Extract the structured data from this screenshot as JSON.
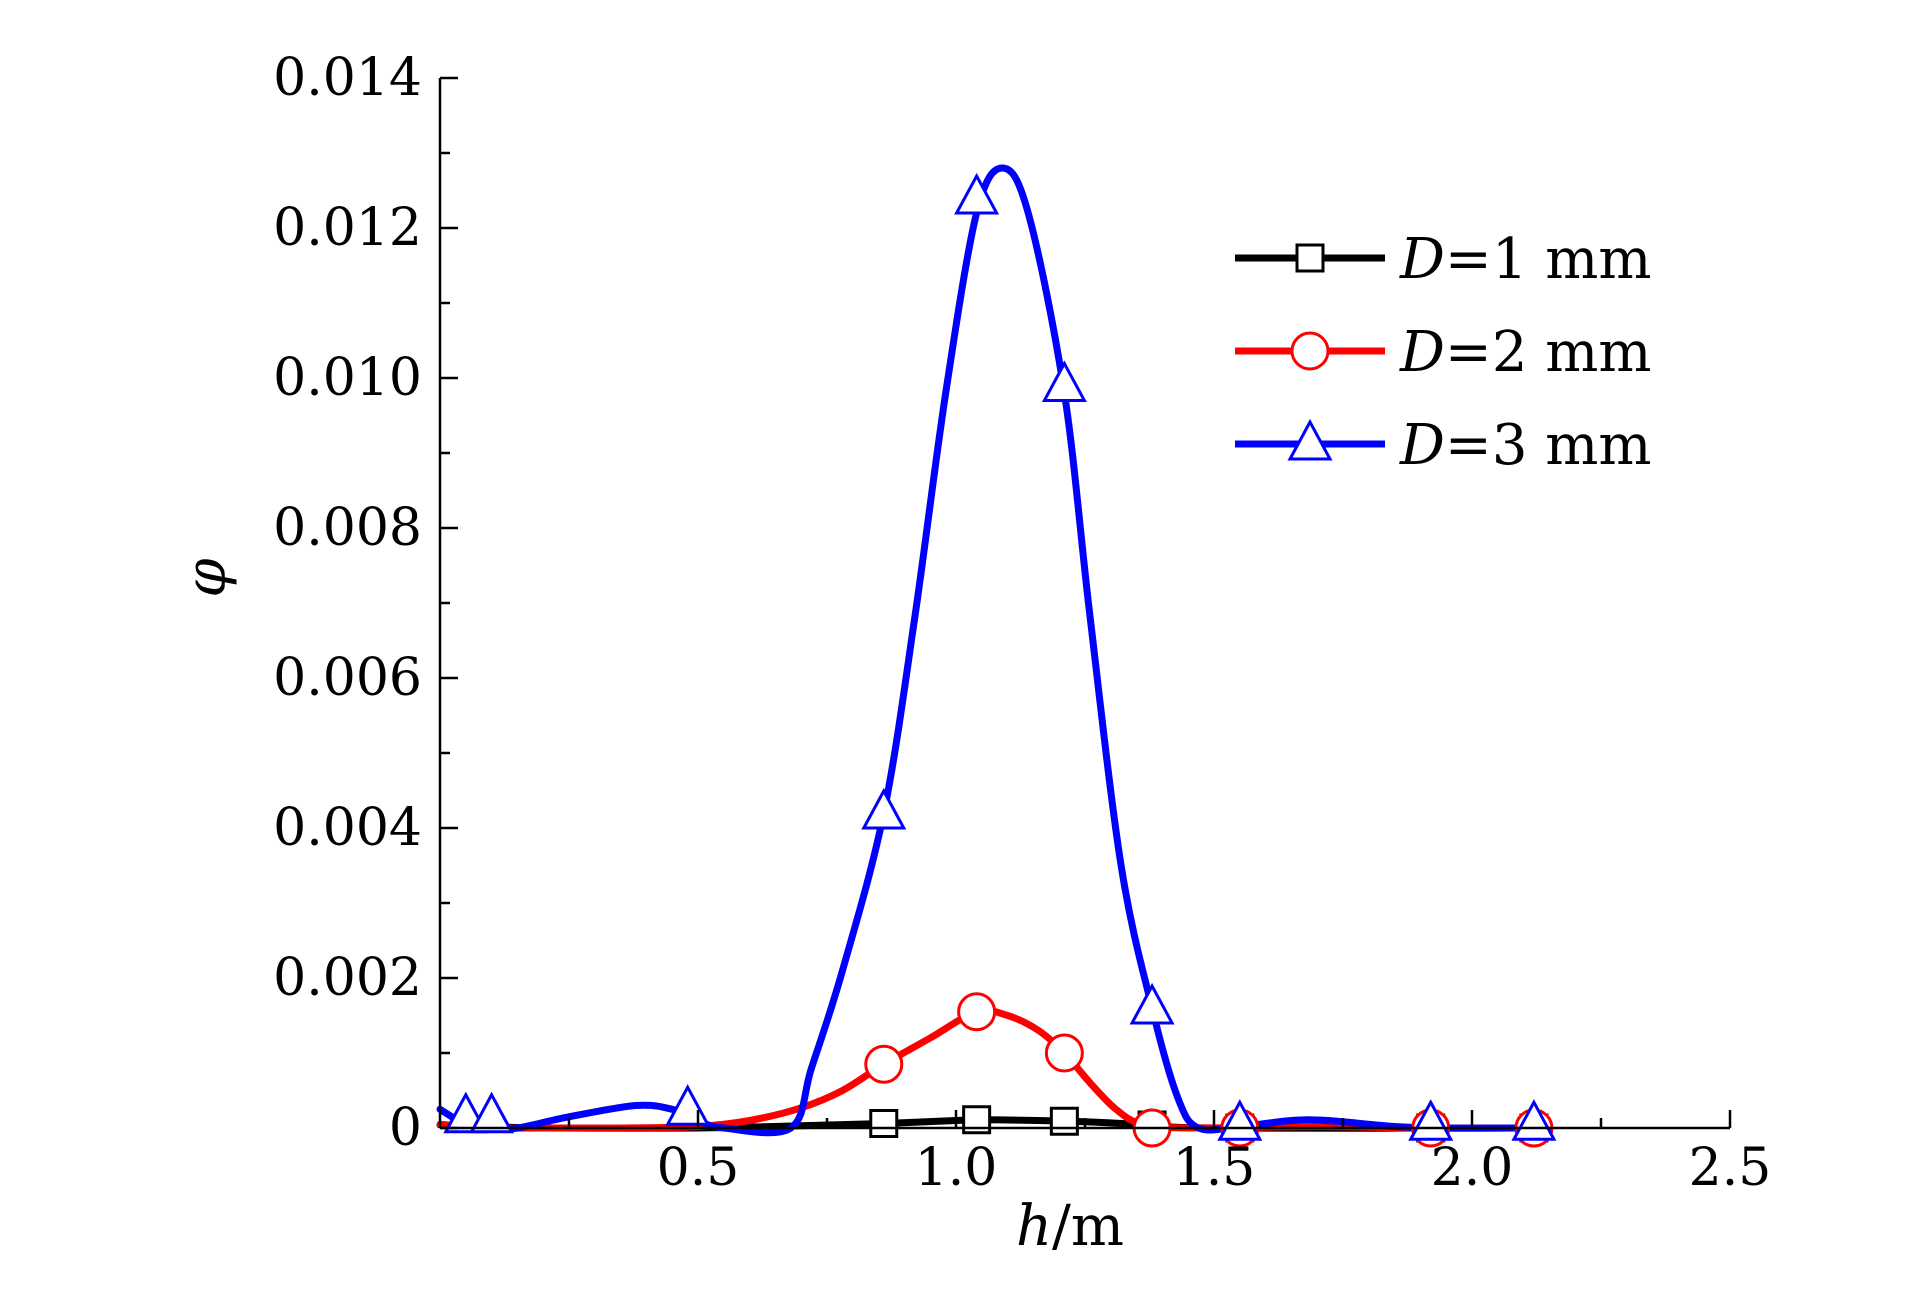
{
  "chart_data": {
    "type": "line",
    "xlabel": {
      "var": "h",
      "unit": "/m"
    },
    "ylabel": "φ",
    "xlim": [
      0,
      2.5
    ],
    "ylim": [
      0,
      0.014
    ],
    "x_ticks": [
      {
        "value": 0.5,
        "label": "0.5"
      },
      {
        "value": 1.0,
        "label": "1.0"
      },
      {
        "value": 1.5,
        "label": "1.5"
      },
      {
        "value": 2.0,
        "label": "2.0"
      },
      {
        "value": 2.5,
        "label": "2.5"
      }
    ],
    "y_ticks": [
      {
        "value": 0,
        "label": "0"
      },
      {
        "value": 0.002,
        "label": "0.002"
      },
      {
        "value": 0.004,
        "label": "0.004"
      },
      {
        "value": 0.006,
        "label": "0.006"
      },
      {
        "value": 0.008,
        "label": "0.008"
      },
      {
        "value": 0.01,
        "label": "0.010"
      },
      {
        "value": 0.012,
        "label": "0.012"
      },
      {
        "value": 0.014,
        "label": "0.014"
      }
    ],
    "x_minor_step": 0.25,
    "y_minor_step": 0.001,
    "grid": false,
    "legend_position": "top-right",
    "series": [
      {
        "name": "D=1 mm",
        "legend_var": "D",
        "legend_rest": "=1 mm",
        "color": "#000000",
        "marker": "square",
        "curve": [
          [
            0,
            4e-05
          ],
          [
            0.1,
            2e-05
          ],
          [
            0.2,
            0
          ],
          [
            0.5,
            0
          ],
          [
            0.7,
            3e-05
          ],
          [
            0.86,
            6e-05
          ],
          [
            1.0,
            0.0001
          ],
          [
            1.05,
            0.00011
          ],
          [
            1.22,
            9e-05
          ],
          [
            1.38,
            4e-05
          ],
          [
            1.5,
            0
          ],
          [
            2.12,
            0
          ]
        ],
        "markers": [
          [
            0.86,
            6e-05
          ],
          [
            1.04,
            0.00011
          ],
          [
            1.21,
            9e-05
          ],
          [
            1.38,
            4e-05
          ],
          [
            1.55,
            0
          ],
          [
            1.92,
            0
          ],
          [
            2.12,
            0
          ]
        ]
      },
      {
        "name": "D=2 mm",
        "legend_var": "D",
        "legend_rest": "=2 mm",
        "color": "#ff0000",
        "marker": "circle",
        "curve": [
          [
            0,
            5e-05
          ],
          [
            0.05,
            2e-05
          ],
          [
            0.1,
            0
          ],
          [
            0.2,
            0
          ],
          [
            0.35,
            0
          ],
          [
            0.5,
            2e-05
          ],
          [
            0.6,
            0.0001
          ],
          [
            0.7,
            0.00027
          ],
          [
            0.78,
            0.0005
          ],
          [
            0.86,
            0.00085
          ],
          [
            0.95,
            0.0012
          ],
          [
            1.04,
            0.00155
          ],
          [
            1.1,
            0.0015
          ],
          [
            1.16,
            0.0013
          ],
          [
            1.21,
            0.001
          ],
          [
            1.26,
            0.0006
          ],
          [
            1.31,
            0.00025
          ],
          [
            1.36,
            5e-05
          ],
          [
            1.45,
            0
          ],
          [
            1.7,
            2e-05
          ],
          [
            1.9,
            0
          ],
          [
            2.12,
            0
          ]
        ],
        "markers": [
          [
            0.86,
            0.00085
          ],
          [
            1.04,
            0.00155
          ],
          [
            1.21,
            0.001
          ],
          [
            1.38,
            0
          ],
          [
            1.55,
            0
          ],
          [
            1.92,
            0
          ],
          [
            2.12,
            0
          ]
        ]
      },
      {
        "name": "D=3 mm",
        "legend_var": "D",
        "legend_rest": "=3 mm",
        "color": "#0000ff",
        "marker": "triangle",
        "curve": [
          [
            0,
            0.00025
          ],
          [
            0.05,
            5e-05
          ],
          [
            0.1,
            0
          ],
          [
            0.15,
            0
          ],
          [
            0.25,
            0.00015
          ],
          [
            0.38,
            0.0003
          ],
          [
            0.45,
            0.00025
          ],
          [
            0.5,
            0.0001
          ],
          [
            0.55,
            0
          ],
          [
            0.68,
            0
          ],
          [
            0.72,
            0.0008
          ],
          [
            0.78,
            0.0021
          ],
          [
            0.86,
            0.0042
          ],
          [
            0.92,
            0.0068
          ],
          [
            0.98,
            0.0098
          ],
          [
            1.04,
            0.0122
          ],
          [
            1.09,
            0.0128
          ],
          [
            1.14,
            0.0122
          ],
          [
            1.21,
            0.0098
          ],
          [
            1.26,
            0.0068
          ],
          [
            1.32,
            0.0035
          ],
          [
            1.38,
            0.0016
          ],
          [
            1.43,
            0.0004
          ],
          [
            1.47,
            0
          ],
          [
            1.55,
            2e-05
          ],
          [
            1.65,
            0.0001
          ],
          [
            1.72,
            0.0001
          ],
          [
            1.85,
            2e-05
          ],
          [
            1.95,
            0
          ],
          [
            2.12,
            0
          ]
        ],
        "markers": [
          [
            0.05,
            0.00015
          ],
          [
            0.1,
            0.00015
          ],
          [
            0.48,
            0.00025
          ],
          [
            0.86,
            0.0042
          ],
          [
            1.04,
            0.0124
          ],
          [
            1.21,
            0.0099
          ],
          [
            1.38,
            0.0016
          ],
          [
            1.55,
            5e-05
          ],
          [
            1.92,
            5e-05
          ],
          [
            2.12,
            5e-05
          ]
        ]
      }
    ]
  }
}
